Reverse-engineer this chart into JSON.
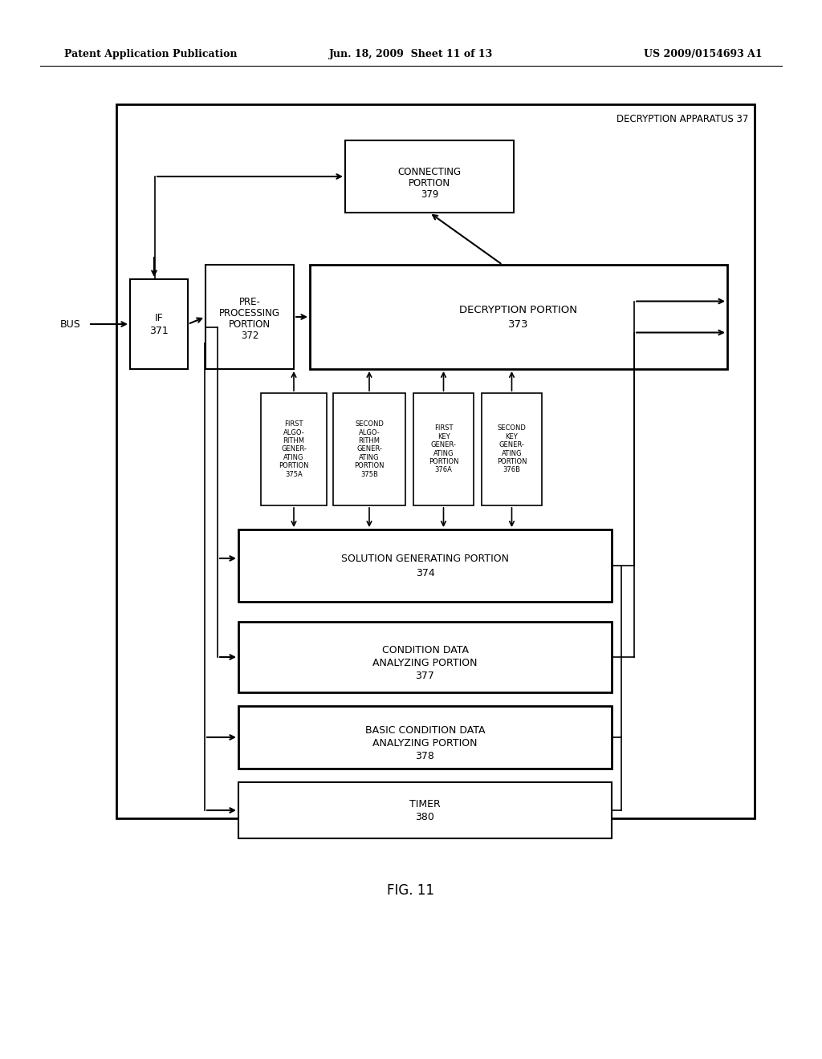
{
  "bg_color": "#ffffff",
  "header_left": "Patent Application Publication",
  "header_mid": "Jun. 18, 2009  Sheet 11 of 13",
  "header_right": "US 2009/0154693 A1",
  "fig_label": "FIG. 11"
}
